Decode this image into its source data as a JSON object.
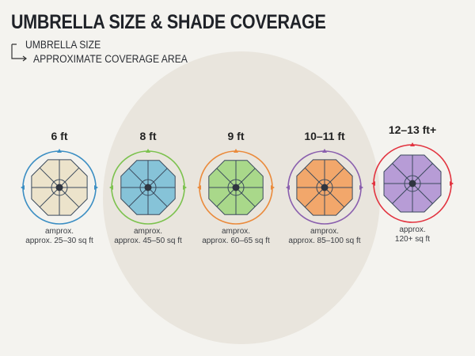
{
  "title": "UMBRELLA SIZE & SHADE COVERAGE",
  "legend": {
    "umbrella_size": "UMBRELLA SIZE",
    "coverage_area": "APPROXIMATE COVERAGE AREA"
  },
  "umbrellas": [
    {
      "size": "6 ft",
      "line1": "amprox.",
      "line2": "approx. 25–30 sq ft",
      "fill": "#ece3cb",
      "ring": "#3b8ec3"
    },
    {
      "size": "8 ft",
      "line1": "amprox.",
      "line2": "approx. 45–50 sq ft",
      "fill": "#86c3d8",
      "ring": "#7cc24e"
    },
    {
      "size": "9 ft",
      "line1": "amprox.",
      "line2": "approx. 60–65 sq ft",
      "fill": "#a9d88a",
      "ring": "#ea8a3b"
    },
    {
      "size": "10–11 ft",
      "line1": "amprox.",
      "line2": "approx. 85–100 sq ft",
      "fill": "#f2a76b",
      "ring": "#8a5fae"
    },
    {
      "size": "12–13 ft+",
      "line1": "approx.",
      "line2": "120+ sq ft",
      "fill": "#b79cd6",
      "ring": "#e2333f"
    }
  ]
}
